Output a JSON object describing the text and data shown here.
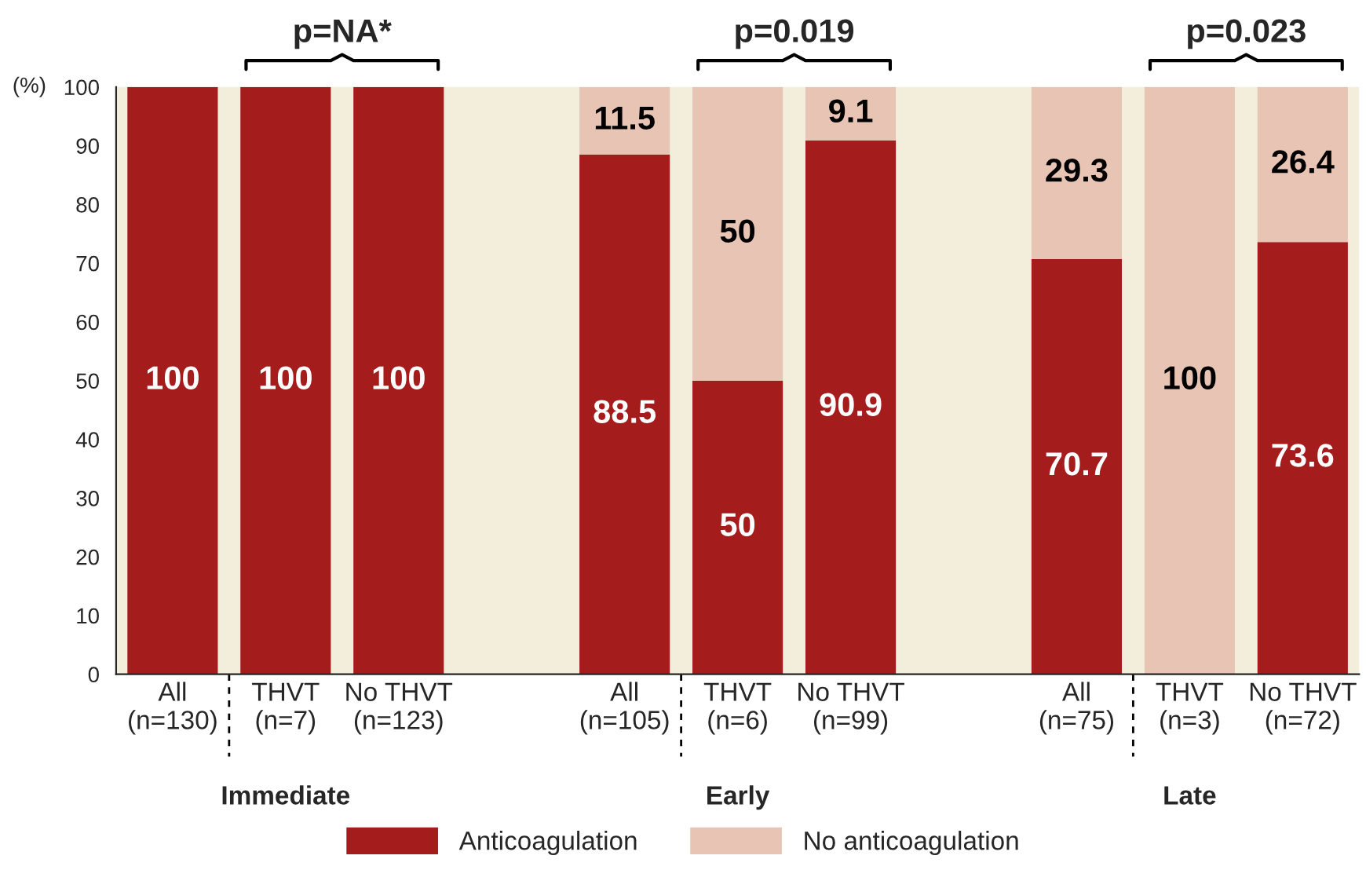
{
  "chart_data": {
    "type": "bar",
    "stacked": true,
    "ylabel": "(%)",
    "categories": [
      "All\n(n=130)",
      "THVT\n(n=7)",
      "No THVT\n(n=123)",
      null,
      "All\n(n=105)",
      "THVT\n(n=6)",
      "No THVT\n(n=99)",
      null,
      "All\n(n=75)",
      "THVT\n(n=3)",
      "No THVT\n(n=72)"
    ],
    "series": [
      {
        "name": "Anticoagulation",
        "color": "#a51c1c",
        "values": [
          100,
          100,
          100,
          null,
          88.5,
          50,
          90.9,
          null,
          70.7,
          0,
          73.6
        ],
        "value_labels": [
          "100",
          "100",
          "100",
          null,
          "88.5",
          "50",
          "90.9",
          null,
          "70.7",
          null,
          "73.6"
        ]
      },
      {
        "name": "No anticoagulation",
        "color": "#e8c4b4",
        "values": [
          0,
          0,
          0,
          null,
          11.5,
          50,
          9.1,
          null,
          29.3,
          100,
          26.4
        ],
        "value_labels": [
          null,
          null,
          null,
          null,
          "11.5",
          "50",
          "9.1",
          null,
          "29.3",
          "100",
          "26.4"
        ]
      }
    ],
    "annotations": [
      "p=NA*",
      "p=0.019",
      "p=0.023",
      "Immediate",
      "Early",
      "Late"
    ],
    "ylim": [
      0,
      100
    ],
    "yticks": [
      0,
      10,
      20,
      30,
      40,
      50,
      60,
      70,
      80,
      90,
      100
    ],
    "grid": false,
    "legend": "bottom"
  }
}
